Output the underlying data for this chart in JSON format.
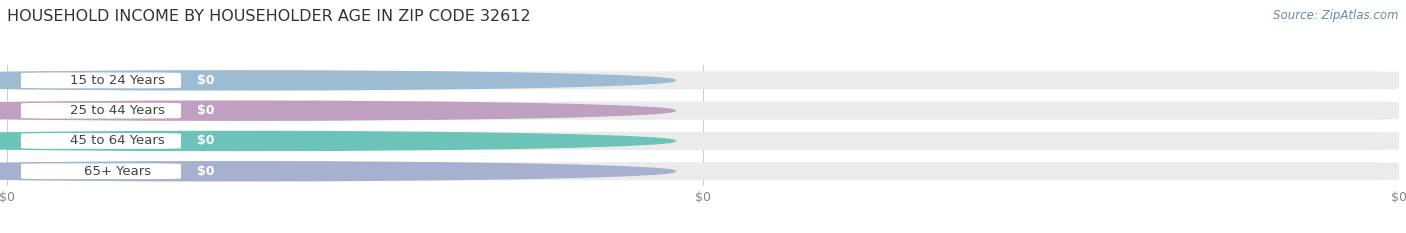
{
  "title": "HOUSEHOLD INCOME BY HOUSEHOLDER AGE IN ZIP CODE 32612",
  "source": "Source: ZipAtlas.com",
  "categories": [
    "15 to 24 Years",
    "25 to 44 Years",
    "45 to 64 Years",
    "65+ Years"
  ],
  "values": [
    0,
    0,
    0,
    0
  ],
  "bar_colors": [
    "#9dbcd4",
    "#c0a0c0",
    "#6cc4b8",
    "#a8b0d0"
  ],
  "bar_bg_color": "#ebebeb",
  "bar_inner_color": "#ffffff",
  "background_color": "#ffffff",
  "title_fontsize": 11.5,
  "source_fontsize": 8.5,
  "label_fontsize": 9.5,
  "value_fontsize": 9,
  "tick_fontsize": 9,
  "tick_color": "#888888",
  "title_color": "#333333",
  "source_color": "#6688aa",
  "label_color": "#444444"
}
